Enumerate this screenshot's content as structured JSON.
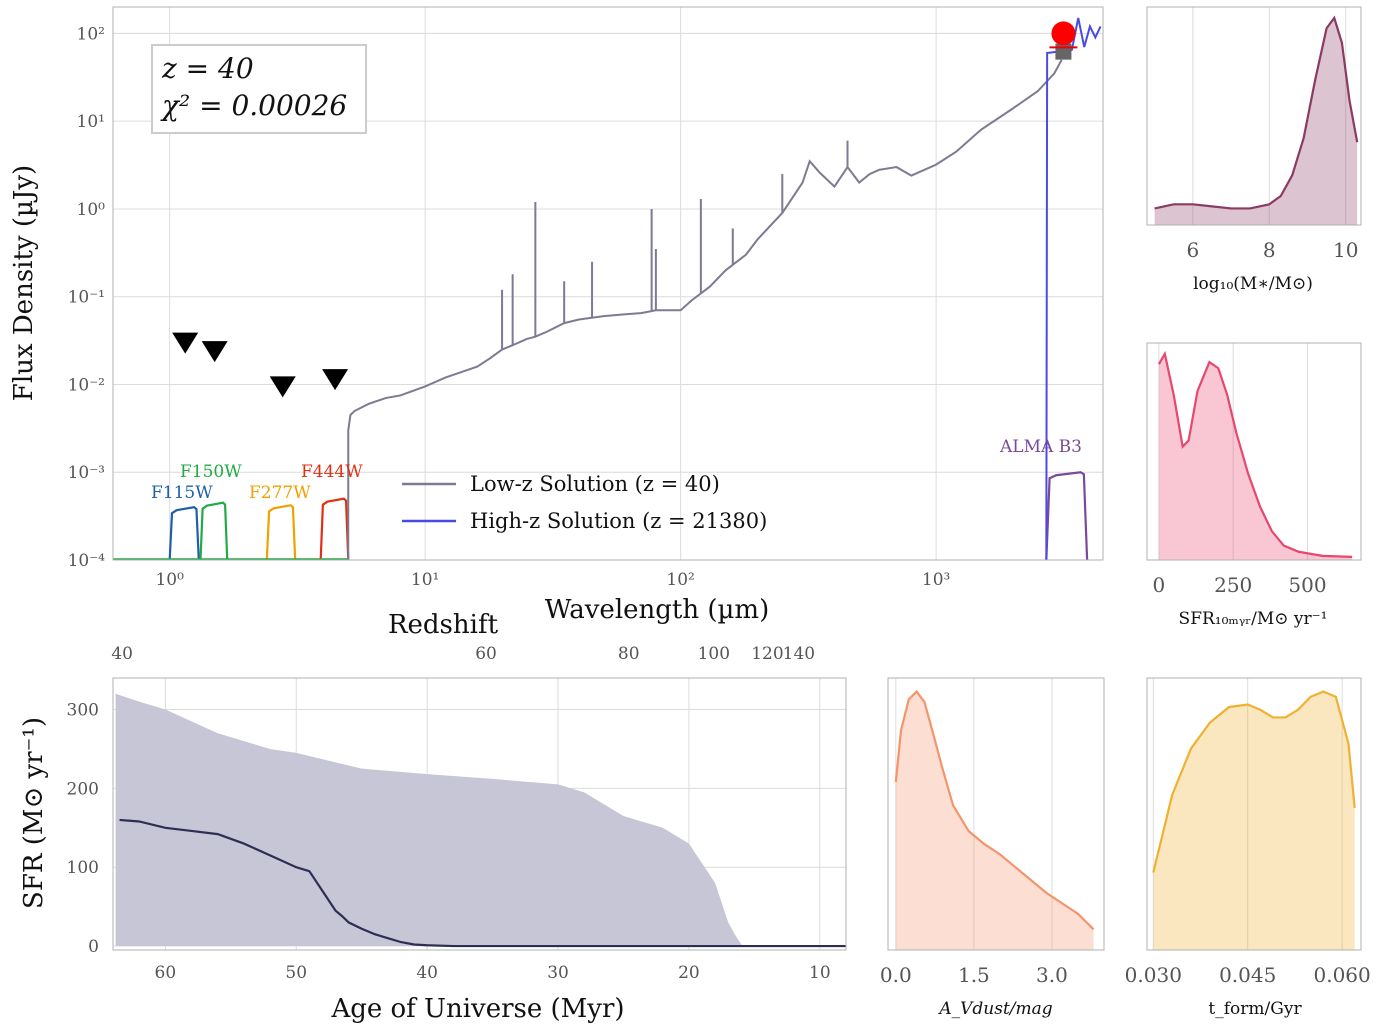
{
  "chart_data": [
    {
      "type": "line",
      "panel": "sed",
      "xlabel": "Wavelength (µm)",
      "ylabel": "Flux Density (µJy)",
      "xscale": "log",
      "yscale": "log",
      "xlim": [
        0.6,
        4500
      ],
      "ylim": [
        0.0001,
        200
      ],
      "x_ticks": [
        "10⁰",
        "10¹",
        "10²",
        "10³"
      ],
      "y_ticks": [
        "10⁻⁴",
        "10⁻³",
        "10⁻²",
        "10⁻¹",
        "10⁰",
        "10¹",
        "10²"
      ],
      "annotation": {
        "z_line": "z = 40",
        "chi_line": "χ² = 0.00026"
      },
      "legend": {
        "placement": "lower-center",
        "entries": [
          "Low-z Solution (z = 40)",
          "High-z Solution (z = 21380)"
        ]
      },
      "series": [
        {
          "name": "Low-z Solution (z = 40)",
          "color": "#7b7b93",
          "x": [
            5.0,
            5.1,
            5.3,
            6,
            7,
            8,
            10,
            12,
            14,
            16,
            18,
            20,
            22,
            25,
            27,
            30,
            35,
            40,
            50,
            60,
            70,
            80,
            100,
            110,
            130,
            150,
            180,
            200,
            250,
            300,
            320,
            350,
            400,
            450,
            500,
            550,
            600,
            700,
            800,
            1000,
            1200,
            1500,
            2000,
            2500,
            2900,
            3100
          ],
          "y": [
            0.003,
            0.0045,
            0.005,
            0.006,
            0.007,
            0.0075,
            0.0095,
            0.012,
            0.014,
            0.016,
            0.02,
            0.025,
            0.028,
            0.033,
            0.035,
            0.04,
            0.05,
            0.055,
            0.06,
            0.063,
            0.065,
            0.07,
            0.07,
            0.09,
            0.13,
            0.2,
            0.3,
            0.45,
            0.9,
            2.0,
            3.5,
            2.6,
            1.8,
            3.0,
            2.0,
            2.5,
            2.8,
            3.0,
            2.4,
            3.2,
            4.5,
            8.0,
            14,
            22,
            35,
            50
          ]
        },
        {
          "name": "High-z Solution (z = 21380)",
          "color": "#4a4ae6",
          "x": [
            2700,
            2720,
            2750,
            3000,
            3200,
            3400,
            3600,
            3800,
            4000,
            4200,
            4400
          ],
          "y": [
            0.0001,
            60,
            60,
            62,
            60,
            65,
            150,
            70,
            120,
            90,
            120
          ]
        }
      ],
      "upper_limits": {
        "x": [
          1.15,
          1.5,
          2.77,
          4.44
        ],
        "y": [
          0.03,
          0.024,
          0.0095,
          0.0115
        ]
      },
      "detection": {
        "x": [
          3150
        ],
        "y": [
          100
        ],
        "model_y": [
          62
        ]
      },
      "filters": [
        {
          "name": "F115W",
          "color": "#1f5fa8",
          "lo": 1.0,
          "hi": 1.3,
          "peak": 0.0004
        },
        {
          "name": "F150W",
          "color": "#22aa44",
          "lo": 1.32,
          "hi": 1.68,
          "peak": 0.00045
        },
        {
          "name": "F277W",
          "color": "#f0a000",
          "lo": 2.4,
          "hi": 3.1,
          "peak": 0.00042
        },
        {
          "name": "F444W",
          "color": "#e03010",
          "lo": 3.9,
          "hi": 5.0,
          "peak": 0.0005
        },
        {
          "name": "ALMA B3",
          "color": "#7a4a9a",
          "lo": 2700,
          "hi": 3900,
          "peak": 0.001
        }
      ]
    },
    {
      "type": "area",
      "panel": "sfh",
      "xlabel": "Age of Universe (Myr)",
      "ylabel": "SFR (M⊙ yr⁻¹)",
      "xlim": [
        64,
        8
      ],
      "ylim": [
        -5,
        340
      ],
      "x_ticks": [
        60,
        50,
        40,
        30,
        20,
        10
      ],
      "y_ticks": [
        0,
        100,
        200,
        300
      ],
      "top_axis": {
        "label": "Redshift",
        "ticks": [
          "40",
          "60",
          "80",
          "100",
          "120",
          "140"
        ],
        "tick_age": [
          63.3,
          35.5,
          24.6,
          18.1,
          14.0,
          11.6
        ]
      },
      "median": {
        "x": [
          63.5,
          62,
          60,
          58,
          56,
          54,
          52,
          50,
          49,
          48,
          47,
          46.5,
          46,
          45,
          44,
          43,
          42,
          41,
          40,
          38,
          30,
          20,
          10,
          8
        ],
        "y": [
          160,
          158,
          150,
          146,
          142,
          130,
          115,
          100,
          95,
          70,
          45,
          38,
          30,
          22,
          15,
          10,
          5,
          2,
          1,
          0,
          0,
          0,
          0,
          0
        ]
      },
      "upper": {
        "x": [
          63.8,
          62,
          60,
          58,
          56,
          54,
          52,
          50,
          45,
          40,
          35,
          30,
          28,
          25,
          22,
          20,
          19,
          18,
          17.5,
          17,
          16.5,
          16,
          15.8
        ],
        "y": [
          320,
          310,
          300,
          285,
          270,
          260,
          250,
          245,
          225,
          218,
          212,
          205,
          195,
          165,
          150,
          130,
          105,
          80,
          55,
          30,
          15,
          2,
          0
        ]
      }
    },
    {
      "type": "area",
      "panel": "mass",
      "xlabel": "log₁₀(M∗/M⊙)",
      "color": "#8b3a62",
      "xlim": [
        4.8,
        10.4
      ],
      "x_ticks": [
        6,
        8,
        10
      ],
      "x": [
        5,
        5.5,
        6,
        6.5,
        7,
        7.5,
        8,
        8.3,
        8.6,
        8.9,
        9.2,
        9.5,
        9.7,
        9.9,
        10.1,
        10.3
      ],
      "y": [
        0.08,
        0.1,
        0.1,
        0.09,
        0.08,
        0.08,
        0.1,
        0.14,
        0.24,
        0.42,
        0.7,
        0.95,
        1.0,
        0.88,
        0.6,
        0.4
      ]
    },
    {
      "type": "area",
      "panel": "sfr",
      "xlabel": "SFR₁₀ₘᵧᵣ/M⊙ yr⁻¹",
      "color": "#e8476e",
      "xlim": [
        -40,
        680
      ],
      "x_ticks": [
        0,
        250,
        500
      ],
      "x": [
        0,
        20,
        50,
        80,
        100,
        130,
        170,
        200,
        230,
        260,
        300,
        340,
        380,
        420,
        470,
        550,
        650
      ],
      "y": [
        0.95,
        1.0,
        0.8,
        0.55,
        0.58,
        0.82,
        0.96,
        0.93,
        0.8,
        0.62,
        0.42,
        0.26,
        0.14,
        0.07,
        0.04,
        0.02,
        0.015
      ]
    },
    {
      "type": "area",
      "panel": "dust",
      "xlabel": "A_Vdust/mag",
      "color": "#f4946b",
      "xlim": [
        -0.15,
        4.0
      ],
      "x_ticks": [
        "0.0",
        "1.5",
        "3.0"
      ],
      "x": [
        0,
        0.1,
        0.25,
        0.4,
        0.55,
        0.7,
        0.9,
        1.1,
        1.4,
        1.7,
        2.0,
        2.3,
        2.6,
        2.9,
        3.2,
        3.5,
        3.8
      ],
      "y": [
        0.65,
        0.85,
        0.97,
        1.0,
        0.96,
        0.85,
        0.7,
        0.56,
        0.46,
        0.41,
        0.37,
        0.32,
        0.27,
        0.22,
        0.18,
        0.14,
        0.08
      ]
    },
    {
      "type": "area",
      "panel": "tform",
      "xlabel": "t_form/Gyr",
      "color": "#f0b030",
      "xlim": [
        0.029,
        0.063
      ],
      "x_ticks": [
        "0.030",
        "0.045",
        "0.060"
      ],
      "x": [
        0.03,
        0.033,
        0.036,
        0.039,
        0.042,
        0.045,
        0.047,
        0.049,
        0.051,
        0.053,
        0.055,
        0.057,
        0.059,
        0.061,
        0.062
      ],
      "y": [
        0.3,
        0.6,
        0.78,
        0.88,
        0.94,
        0.95,
        0.93,
        0.9,
        0.9,
        0.93,
        0.98,
        1.0,
        0.98,
        0.8,
        0.55
      ]
    }
  ]
}
